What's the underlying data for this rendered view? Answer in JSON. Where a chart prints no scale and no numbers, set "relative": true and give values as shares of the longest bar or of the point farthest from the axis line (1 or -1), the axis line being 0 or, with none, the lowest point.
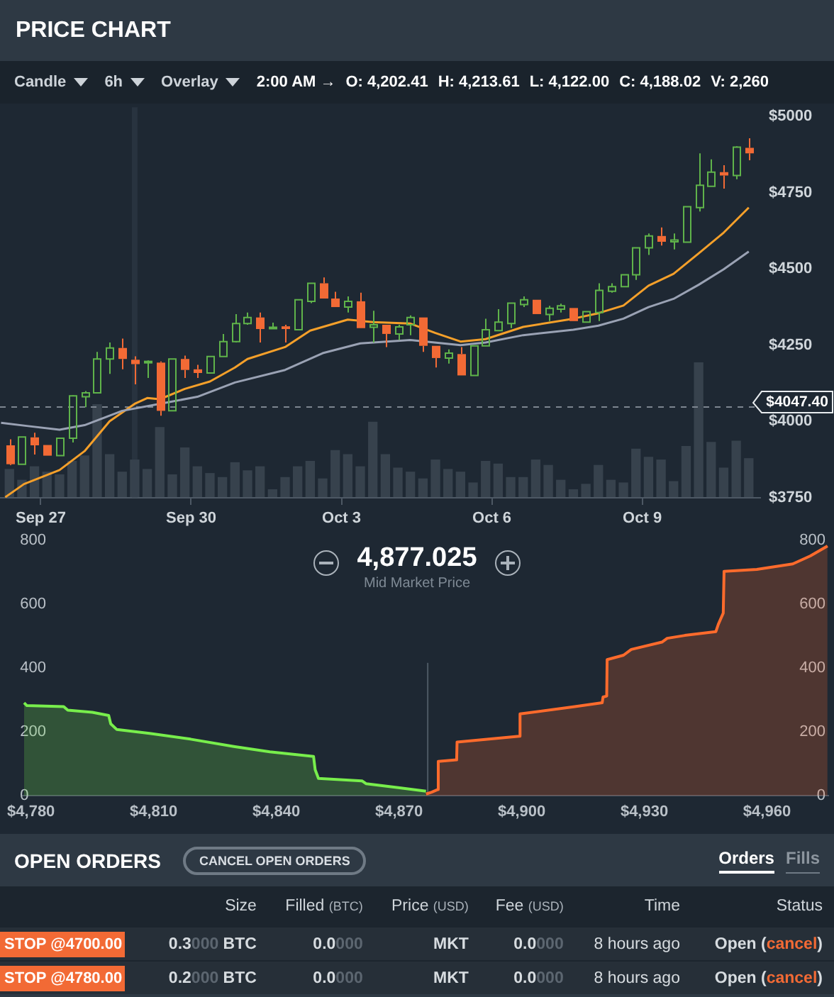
{
  "chart_data": [
    {
      "type": "candlestick",
      "title": "PRICE CHART",
      "annotations": [
        "Candle",
        "6h",
        "Overlay",
        "2:00 AM →",
        "O: 4,202.41",
        "H: 4,213.61",
        "L: 4,122.00",
        "C: 4,188.02",
        "V: 2,260"
      ],
      "x": [
        "--09-26T09:00",
        "--09-26T15:00",
        "--09-26T21:00",
        "--09-27T03:00",
        "--09-27T09:00",
        "--09-27T15:00",
        "--09-27T21:00",
        "--09-28T03:00",
        "--09-28T09:00",
        "--09-28T15:00",
        "--09-28T21:00",
        "--09-29T03:00",
        "--09-29T09:00",
        "--09-29T15:00",
        "--09-29T21:00",
        "--09-30T03:00",
        "--09-30T09:00",
        "--09-30T15:00",
        "--09-30T21:00",
        "--10-01T03:00",
        "--10-01T09:00",
        "--10-01T15:00",
        "--10-01T21:00",
        "--10-02T03:00",
        "--10-02T09:00",
        "--10-02T15:00",
        "--10-02T21:00",
        "--10-03T03:00",
        "--10-03T09:00",
        "--10-03T15:00",
        "--10-03T21:00",
        "--10-04T03:00",
        "--10-04T09:00",
        "--10-04T15:00",
        "--10-04T21:00",
        "--10-05T03:00",
        "--10-05T09:00",
        "--10-05T15:00",
        "--10-05T21:00",
        "--10-06T03:00",
        "--10-06T09:00",
        "--10-06T15:00",
        "--10-06T21:00",
        "--10-07T03:00",
        "--10-07T09:00",
        "--10-07T15:00",
        "--10-07T21:00",
        "--10-08T03:00",
        "--10-08T09:00",
        "--10-08T15:00",
        "--10-08T21:00",
        "--10-09T03:00",
        "--10-09T09:00",
        "--10-09T15:00",
        "--10-09T21:00",
        "--10-10T03:00",
        "--10-10T09:00",
        "--10-10T15:00",
        "--10-10T21:00",
        "--10-11T03:00"
      ],
      "ohlc": [
        [
          3922,
          3942,
          3857,
          3860
        ],
        [
          3860,
          3950,
          3860,
          3949
        ],
        [
          3948,
          3963,
          3892,
          3922
        ],
        [
          3923,
          3923,
          3888,
          3888
        ],
        [
          3888,
          3945,
          3888,
          3945
        ],
        [
          3945,
          4086,
          3931,
          4084
        ],
        [
          4081,
          4100,
          4047,
          4094
        ],
        [
          4094,
          4228,
          4094,
          4205
        ],
        [
          4205,
          4259,
          4156,
          4241
        ],
        [
          4241,
          4272,
          4171,
          4205
        ],
        [
          4202.41,
          4213.61,
          4122.0,
          4188.02
        ],
        [
          4193,
          4200,
          4143,
          4197
        ],
        [
          4193,
          4197,
          4019,
          4035
        ],
        [
          4035,
          4205,
          4035,
          4205
        ],
        [
          4205,
          4216,
          4143,
          4169
        ],
        [
          4171,
          4186,
          4143,
          4159
        ],
        [
          4159,
          4213,
          4159,
          4213
        ],
        [
          4213,
          4287,
          4213,
          4262
        ],
        [
          4262,
          4352,
          4259,
          4321
        ],
        [
          4321,
          4357,
          4317,
          4341
        ],
        [
          4341,
          4357,
          4259,
          4303
        ],
        [
          4304,
          4324,
          4304,
          4309
        ],
        [
          4312,
          4317,
          4259,
          4303
        ],
        [
          4301,
          4399,
          4301,
          4399
        ],
        [
          4394,
          4453,
          4388,
          4453
        ],
        [
          4453,
          4472,
          4403,
          4403
        ],
        [
          4403,
          4425,
          4375,
          4375
        ],
        [
          4375,
          4410,
          4357,
          4394
        ],
        [
          4394,
          4422,
          4306,
          4306
        ],
        [
          4309,
          4363,
          4259,
          4317
        ],
        [
          4317,
          4317,
          4244,
          4287
        ],
        [
          4287,
          4317,
          4267,
          4310
        ],
        [
          4317,
          4348,
          4283,
          4341
        ],
        [
          4341,
          4341,
          4228,
          4248
        ],
        [
          4248,
          4248,
          4177,
          4208
        ],
        [
          4208,
          4236,
          4190,
          4224
        ],
        [
          4221,
          4244,
          4151,
          4151
        ],
        [
          4151,
          4248,
          4151,
          4248
        ],
        [
          4248,
          4337,
          4248,
          4301
        ],
        [
          4298,
          4368,
          4298,
          4326
        ],
        [
          4321,
          4388,
          4306,
          4388
        ],
        [
          4383,
          4410,
          4375,
          4399
        ],
        [
          4399,
          4399,
          4352,
          4352
        ],
        [
          4351,
          4379,
          4329,
          4371
        ],
        [
          4368,
          4386,
          4357,
          4379
        ],
        [
          4372,
          4372,
          4329,
          4329
        ],
        [
          4326,
          4360,
          4326,
          4360
        ],
        [
          4357,
          4453,
          4329,
          4430
        ],
        [
          4427,
          4453,
          4422,
          4442
        ],
        [
          4442,
          4481,
          4442,
          4481
        ],
        [
          4481,
          4569,
          4464,
          4569
        ],
        [
          4569,
          4616,
          4546,
          4608
        ],
        [
          4608,
          4636,
          4577,
          4589
        ],
        [
          4589,
          4616,
          4564,
          4595
        ],
        [
          4588,
          4704,
          4588,
          4704
        ],
        [
          4701,
          4879,
          4688,
          4774
        ],
        [
          4771,
          4859,
          4771,
          4817
        ],
        [
          4817,
          4840,
          4763,
          4806
        ],
        [
          4806,
          4902,
          4794,
          4899
        ],
        [
          4897,
          4928,
          4856,
          4879
        ]
      ],
      "colors": [
        "#f26a35",
        "#5fb34a",
        "#f26a35",
        "#f26a35",
        "#5fb34a",
        "#5fb34a",
        "#5fb34a",
        "#5fb34a",
        "#5fb34a",
        "#f26a35",
        "#f26a35",
        "#5fb34a",
        "#f26a35",
        "#5fb34a",
        "#f26a35",
        "#f26a35",
        "#5fb34a",
        "#5fb34a",
        "#5fb34a",
        "#5fb34a",
        "#f26a35",
        "#5fb34a",
        "#f26a35",
        "#5fb34a",
        "#5fb34a",
        "#f26a35",
        "#f26a35",
        "#5fb34a",
        "#f26a35",
        "#5fb34a",
        "#f26a35",
        "#5fb34a",
        "#5fb34a",
        "#f26a35",
        "#f26a35",
        "#5fb34a",
        "#f26a35",
        "#5fb34a",
        "#5fb34a",
        "#5fb34a",
        "#5fb34a",
        "#5fb34a",
        "#f26a35",
        "#5fb34a",
        "#5fb34a",
        "#f26a35",
        "#5fb34a",
        "#5fb34a",
        "#5fb34a",
        "#5fb34a",
        "#5fb34a",
        "#5fb34a",
        "#f26a35",
        "#5fb34a",
        "#5fb34a",
        "#5fb34a",
        "#5fb34a",
        "#f26a35",
        "#5fb34a",
        "#f26a35"
      ],
      "series": [
        {
          "type": "line",
          "color": "#9aa2b4",
          "x": [
            "--09-26T05:00",
            "--09-26T18:00",
            "--09-27T09:00",
            "--09-27T21:00",
            "--09-28T15:00",
            "--09-29T09:00",
            "--09-30T03:00",
            "--09-30T21:00",
            "--10-01T21:00",
            "--10-02T15:00",
            "--10-03T09:00",
            "--10-04T09:00",
            "--10-05T09:00",
            "--10-05T21:00",
            "--10-06T15:00",
            "--10-07T15:00",
            "--10-08T03:00",
            "--10-08T15:00",
            "--10-09T03:00",
            "--10-09T15:00",
            "--10-10T03:00",
            "--10-10T15:00",
            "--10-11T03:00"
          ],
          "values": [
            3996,
            3985,
            3973,
            3988,
            4035,
            4058,
            4081,
            4128,
            4169,
            4224,
            4256,
            4267,
            4250,
            4259,
            4283,
            4301,
            4314,
            4337,
            4375,
            4402,
            4448,
            4499,
            4557
          ]
        },
        {
          "type": "line",
          "color": "#f5a02a",
          "x": [
            "--09-26T07:00",
            "--09-26T16:00",
            "--09-27T09:00",
            "--09-27T21:00",
            "--09-28T09:00",
            "--09-28T21:00",
            "--09-29T03:00",
            "--09-29T09:00",
            "--09-29T21:00",
            "--09-30T09:00",
            "--09-30T21:00",
            "--10-01T03:00",
            "--10-01T21:00",
            "--10-02T09:00",
            "--10-03T03:00",
            "--10-03T15:00",
            "--10-04T09:00",
            "--10-04T21:00",
            "--10-05T09:00",
            "--10-05T21:00",
            "--10-06T15:00",
            "--10-07T15:00",
            "--10-08T03:00",
            "--10-08T15:00",
            "--10-09T03:00",
            "--10-09T15:00",
            "--10-10T03:00",
            "--10-10T15:00",
            "--10-11T03:00"
          ],
          "values": [
            3752,
            3795,
            3841,
            3903,
            4001,
            4058,
            4077,
            4073,
            4107,
            4131,
            4177,
            4205,
            4244,
            4298,
            4334,
            4326,
            4321,
            4290,
            4262,
            4270,
            4310,
            4337,
            4355,
            4380,
            4445,
            4484,
            4551,
            4619,
            4701
          ]
        }
      ],
      "xlim": [
        "--09-26T04:30",
        "--10-11T08:30"
      ],
      "xticks": [
        {
          "value": "--09-27",
          "label": "Sep 27"
        },
        {
          "value": "--09-30",
          "label": "Sep 30"
        },
        {
          "value": "--10-03",
          "label": "Oct 3"
        },
        {
          "value": "--10-06",
          "label": "Oct 6"
        },
        {
          "value": "--10-09",
          "label": "Oct 9"
        }
      ],
      "ylim": [
        3750,
        5030
      ],
      "yticks": [
        {
          "value": 3750,
          "label": "$3750"
        },
        {
          "value": 4000,
          "label": "$4000"
        },
        {
          "value": 4250,
          "label": "$4250"
        },
        {
          "value": 4500,
          "label": "$4500"
        },
        {
          "value": 4750,
          "label": "$4750"
        },
        {
          "value": 5000,
          "label": "$5000"
        }
      ],
      "ref_lines": [
        {
          "axis": "x",
          "value": "--09-28T21:00",
          "color": "#36414d"
        },
        {
          "axis": "y",
          "value": 4047.4,
          "label": "$4047.40",
          "color": "#7d8690",
          "line_style": "dashed"
        }
      ]
    },
    {
      "type": "bar",
      "relative": true,
      "tick_labels": false,
      "color": "#37424d",
      "x": [
        "--09-26T09:00",
        "--09-26T15:00",
        "--09-26T21:00",
        "--09-27T03:00",
        "--09-27T09:00",
        "--09-27T15:00",
        "--09-27T21:00",
        "--09-28T03:00",
        "--09-28T09:00",
        "--09-28T15:00",
        "--09-28T21:00",
        "--09-29T03:00",
        "--09-29T09:00",
        "--09-29T15:00",
        "--09-29T21:00",
        "--09-30T03:00",
        "--09-30T09:00",
        "--09-30T15:00",
        "--09-30T21:00",
        "--10-01T03:00",
        "--10-01T09:00",
        "--10-01T15:00",
        "--10-01T21:00",
        "--10-02T03:00",
        "--10-02T09:00",
        "--10-02T15:00",
        "--10-02T21:00",
        "--10-03T03:00",
        "--10-03T09:00",
        "--10-03T15:00",
        "--10-03T21:00",
        "--10-04T03:00",
        "--10-04T09:00",
        "--10-04T15:00",
        "--10-04T21:00",
        "--10-05T03:00",
        "--10-05T09:00",
        "--10-05T15:00",
        "--10-05T21:00",
        "--10-06T03:00",
        "--10-06T09:00",
        "--10-06T15:00",
        "--10-06T21:00",
        "--10-07T03:00",
        "--10-07T09:00",
        "--10-07T15:00",
        "--10-07T21:00",
        "--10-08T03:00",
        "--10-08T09:00",
        "--10-08T15:00",
        "--10-08T21:00",
        "--10-09T03:00",
        "--10-09T09:00",
        "--10-09T15:00",
        "--10-09T21:00",
        "--10-10T03:00",
        "--10-10T09:00",
        "--10-10T15:00",
        "--10-10T21:00",
        "--10-11T03:00"
      ],
      "values": [
        0.21,
        0.13,
        0.23,
        0.19,
        0.17,
        0.27,
        0.31,
        0.69,
        0.32,
        0.19,
        0.28,
        0.21,
        0.52,
        0.17,
        0.37,
        0.23,
        0.18,
        0.15,
        0.26,
        0.2,
        0.23,
        0.06,
        0.15,
        0.23,
        0.27,
        0.14,
        0.35,
        0.32,
        0.23,
        0.56,
        0.32,
        0.22,
        0.19,
        0.14,
        0.28,
        0.21,
        0.19,
        0.11,
        0.27,
        0.25,
        0.15,
        0.15,
        0.28,
        0.24,
        0.13,
        0.06,
        0.1,
        0.24,
        0.13,
        0.11,
        0.36,
        0.3,
        0.28,
        0.12,
        0.38,
        1,
        0.41,
        0.22,
        0.42,
        0.29
      ],
      "xlim": [
        "--09-26T04:30",
        "--10-11T08:30"
      ]
    },
    {
      "type": "area",
      "title": "4,877.025",
      "subtitle": "Mid Market Price",
      "series": [
        {
          "color": "#78ee4c",
          "x": [
            4778.3,
            4779,
            4788,
            4789,
            4795,
            4799,
            4799.5,
            4801,
            4809,
            4819,
            4829.6,
            4838.4,
            4849.1,
            4849.5,
            4850.3,
            4861,
            4862,
            4869.8,
            4876.6
          ],
          "values": [
            291,
            282,
            279,
            268,
            261,
            251,
            225,
            207,
            195,
            177,
            154,
            137,
            123,
            81,
            54,
            46,
            37,
            25,
            14
          ]
        },
        {
          "color": "#ff6b2c",
          "x": [
            4876.6,
            4878,
            4879.5,
            4879.6,
            4884.1,
            4884.2,
            4899.4,
            4899.6,
            4913,
            4919.7,
            4919.9,
            4920.8,
            4920.9,
            4924.9,
            4926.8,
            4934.3,
            4935.6,
            4939.9,
            4947.5,
            4948.1,
            4949.3,
            4949.5,
            4957.5,
            4966.3,
            4970.6,
            4974.8
          ],
          "values": [
            5,
            11,
            19,
            107,
            112,
            168,
            186,
            256,
            279,
            291,
            309,
            312,
            426,
            440,
            458,
            481,
            493,
            502,
            514,
            537,
            572,
            703,
            709,
            726,
            751,
            782
          ]
        }
      ],
      "xlim": [
        4778,
        4975
      ],
      "xticks": [
        {
          "value": 4780,
          "label": "$4,780"
        },
        {
          "value": 4810,
          "label": "$4,810"
        },
        {
          "value": 4840,
          "label": "$4,840"
        },
        {
          "value": 4870,
          "label": "$4,870"
        },
        {
          "value": 4900,
          "label": "$4,900"
        },
        {
          "value": 4930,
          "label": "$4,930"
        },
        {
          "value": 4960,
          "label": "$4,960"
        }
      ],
      "ylim": [
        0,
        800
      ],
      "yticks": [
        0,
        200,
        400,
        600,
        800
      ],
      "y2lim": [
        0,
        800
      ],
      "y2ticks": [
        0,
        200,
        400,
        600,
        800
      ],
      "ref_lines": [
        {
          "axis": "x",
          "value": 4877.025,
          "color": "#4d5864"
        }
      ]
    },
    {
      "type": "other",
      "title": "OPEN ORDERS",
      "annotations": [
        "CANCEL OPEN ORDERS",
        "Orders",
        "Fills"
      ],
      "categories": [
        null,
        "Size",
        "Filled (BTC)",
        "Price (USD)",
        "Fee (USD)",
        "Time",
        "Status"
      ],
      "cell_labels": [
        [
          "STOP @4700.00",
          "0.3000 BTC",
          "0.0000",
          "MKT",
          "0.0000",
          "8 hours ago",
          "Open (cancel)"
        ],
        [
          "STOP @4780.00",
          "0.2000 BTC",
          "0.0000",
          "MKT",
          "0.0000",
          "8 hours ago",
          "Open (cancel)"
        ]
      ]
    }
  ]
}
